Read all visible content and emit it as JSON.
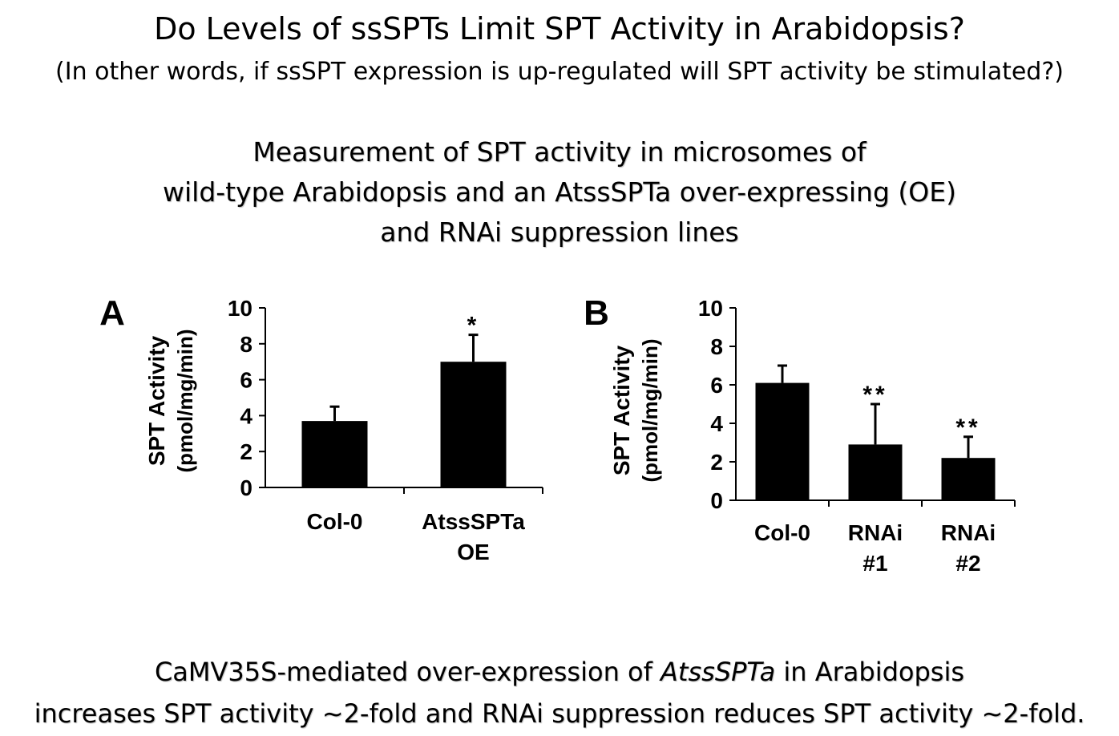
{
  "slide": {
    "title": "Do Levels of ssSPTs Limit SPT Activity in Arabidopsis?",
    "subtitle": "(In other words, if ssSPT expression is up-regulated will SPT activity be stimulated?)",
    "heading_lines": [
      "Measurement of SPT activity in microsomes of",
      "wild-type Arabidopsis and an AtssSPTa over-expressing (OE)",
      "and RNAi suppression lines"
    ],
    "caption": {
      "line1_pre": "CaMV35S-mediated over-expression of ",
      "line1_italic": "AtssSPTa",
      "line1_post": " in Arabidopsis",
      "line2": "increases SPT activity ~2-fold and RNAi suppression reduces SPT activity ~2-fold."
    }
  },
  "chart_data": [
    {
      "type": "bar",
      "panel_label": "A",
      "categories": [
        [
          "Col-0"
        ],
        [
          "AtssSPTa",
          "OE"
        ]
      ],
      "values": [
        3.7,
        7.0
      ],
      "error": [
        0.8,
        1.5
      ],
      "significance": [
        "",
        "*"
      ],
      "ylabel": "SPT Activity",
      "ylabel2": "(pmol/mg/min)",
      "ylim": [
        0,
        10
      ],
      "yticks": [
        0,
        2,
        4,
        6,
        8,
        10
      ],
      "bar_color": "#000000"
    },
    {
      "type": "bar",
      "panel_label": "B",
      "categories": [
        [
          "Col-0"
        ],
        [
          "RNAi",
          "#1"
        ],
        [
          "RNAi",
          "#2"
        ]
      ],
      "values": [
        6.1,
        2.9,
        2.2
      ],
      "error": [
        0.9,
        2.1,
        1.1
      ],
      "significance": [
        "",
        "**",
        "**"
      ],
      "ylabel": "SPT Activity",
      "ylabel2": "(pmol/mg/min)",
      "ylim": [
        0,
        10
      ],
      "yticks": [
        0,
        2,
        4,
        6,
        8,
        10
      ],
      "bar_color": "#000000"
    }
  ]
}
